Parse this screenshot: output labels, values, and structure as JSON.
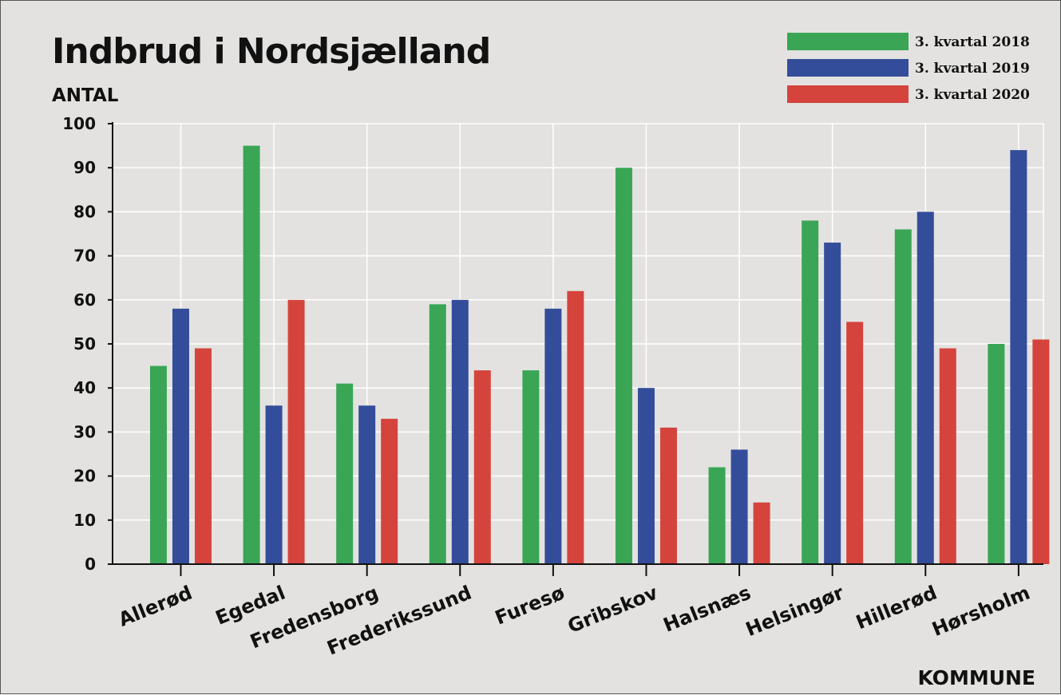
{
  "chart_data": {
    "type": "bar",
    "title": "Indbrud i Nordsjælland",
    "ylabel": "ANTAL",
    "xlabel": "KOMMUNE",
    "ylim": [
      0,
      100
    ],
    "yticks": [
      0,
      10,
      20,
      30,
      40,
      50,
      60,
      70,
      80,
      90,
      100
    ],
    "grid": true,
    "legend_position": "top-right",
    "categories": [
      "Allerød",
      "Egedal",
      "Fredensborg",
      "Frederikssund",
      "Furesø",
      "Gribskov",
      "Halsnæs",
      "Helsingør",
      "Hillerød",
      "Hørsholm"
    ],
    "series": [
      {
        "name": "3. kvartal 2018",
        "color": "#3aa655",
        "values": [
          45,
          95,
          41,
          59,
          44,
          90,
          22,
          78,
          76,
          50
        ]
      },
      {
        "name": "3. kvartal 2019",
        "color": "#344d9a",
        "values": [
          58,
          36,
          36,
          60,
          58,
          40,
          26,
          73,
          80,
          94
        ]
      },
      {
        "name": "3. kvartal 2020",
        "color": "#d4443d",
        "values": [
          49,
          60,
          33,
          44,
          62,
          31,
          14,
          55,
          49,
          51
        ]
      }
    ]
  }
}
